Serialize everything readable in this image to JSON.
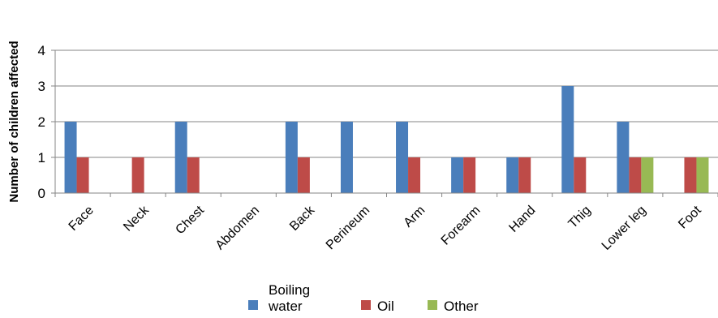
{
  "chart_data": {
    "type": "bar",
    "title": "",
    "xlabel": "",
    "ylabel": "Number of children affected",
    "ylim": [
      0,
      4
    ],
    "yticks": [
      0,
      1,
      2,
      3,
      4
    ],
    "grid": true,
    "legend_position": "bottom",
    "categories": [
      "Face",
      "Neck",
      "Chest",
      "Abdomen",
      "Back",
      "Perineum",
      "Arm",
      "Forearm",
      "Hand",
      "Thig",
      "Lower leg",
      "Foot"
    ],
    "series": [
      {
        "name": "Boiling water",
        "color": "#4a7ebb",
        "values": [
          2,
          0,
          2,
          0,
          2,
          2,
          2,
          1,
          1,
          3,
          2,
          0
        ]
      },
      {
        "name": "Oil",
        "color": "#be4b48",
        "values": [
          1,
          1,
          1,
          0,
          1,
          0,
          1,
          1,
          1,
          1,
          1,
          1
        ]
      },
      {
        "name": "Other",
        "color": "#98b954",
        "values": [
          0,
          0,
          0,
          0,
          0,
          0,
          0,
          0,
          0,
          0,
          1,
          1
        ]
      }
    ]
  }
}
